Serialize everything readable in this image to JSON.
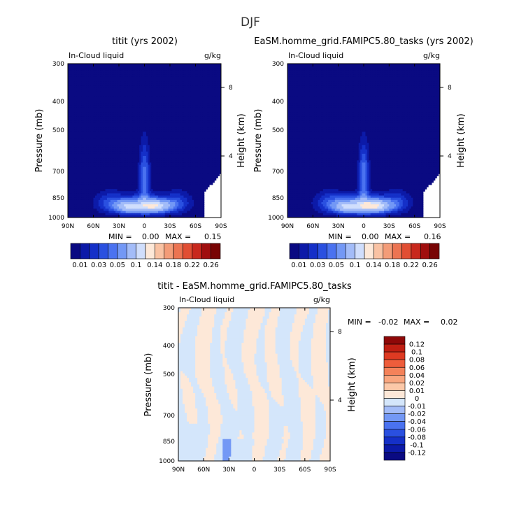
{
  "title": "DJF",
  "colors": {
    "seq": [
      "#0a0a82",
      "#0c1aa8",
      "#1530c8",
      "#2a50e0",
      "#4a72f0",
      "#7398f5",
      "#a3bcf8",
      "#d0defc",
      "#fde8d8",
      "#f9c2a3",
      "#f39c78",
      "#ec7452",
      "#e14e33",
      "#c8281d",
      "#a00e0e",
      "#780404"
    ],
    "div": [
      "#0a0a82",
      "#0c1aa8",
      "#1530c8",
      "#2a50e0",
      "#4a72f0",
      "#7398f5",
      "#a3bcf8",
      "#d4e6fb",
      "#fde8d8",
      "#fcc8a8",
      "#f9a67f",
      "#f4825a",
      "#ee5d3b",
      "#de3a22",
      "#bf1e12",
      "#8e0808"
    ]
  },
  "chart_data": [
    {
      "type": "heatmap",
      "title": "titit (yrs 2002)",
      "left_label": "In-Cloud liquid",
      "right_label": "g/kg",
      "ylabel": "Pressure (mb)",
      "ylabel_right": "Height (km)",
      "x_ticks": [
        "90N",
        "60N",
        "30N",
        "0",
        "30S",
        "60S",
        "90S"
      ],
      "y_ticks": [
        "300",
        "400",
        "500",
        "700",
        "850",
        "1000"
      ],
      "y_right_ticks": [
        "8",
        "4"
      ],
      "stats": {
        "min_label": "MIN =",
        "min": "0.00",
        "max_label": "MAX =",
        "max": "0.15"
      },
      "colorbar_labels": [
        "0.01",
        "0.03",
        "0.05",
        "0.1",
        "0.14",
        "0.18",
        "0.22",
        "0.26"
      ],
      "peak_value": 0.15,
      "missing_above_lat": -60
    },
    {
      "type": "heatmap",
      "title": "EaSM.homme_grid.FAMIPC5.80_tasks (yrs 2002)",
      "left_label": "In-Cloud liquid",
      "right_label": "g/kg",
      "ylabel": "Pressure (mb)",
      "ylabel_right": "Height (km)",
      "x_ticks": [
        "90N",
        "60N",
        "30N",
        "0",
        "30S",
        "60S",
        "90S"
      ],
      "y_ticks": [
        "300",
        "400",
        "500",
        "700",
        "850",
        "1000"
      ],
      "y_right_ticks": [
        "8",
        "4"
      ],
      "stats": {
        "min_label": "MIN =",
        "min": "0.00",
        "max_label": "MAX =",
        "max": "0.16"
      },
      "colorbar_labels": [
        "0.01",
        "0.03",
        "0.05",
        "0.1",
        "0.14",
        "0.18",
        "0.22",
        "0.26"
      ],
      "peak_value": 0.16,
      "missing_above_lat": -60
    },
    {
      "type": "heatmap",
      "title": "titit - EaSM.homme_grid.FAMIPC5.80_tasks",
      "left_label": "In-Cloud liquid",
      "right_label": "g/kg",
      "ylabel": "Pressure (mb)",
      "ylabel_right": "Height (km)",
      "x_ticks": [
        "90N",
        "60N",
        "30N",
        "0",
        "30S",
        "60S",
        "90S"
      ],
      "y_ticks": [
        "300",
        "400",
        "500",
        "700",
        "850",
        "1000"
      ],
      "y_right_ticks": [
        "8",
        "4"
      ],
      "stats": {
        "min_label": "MIN =",
        "min": "-0.02",
        "max_label": "MAX =",
        "max": "0.02"
      },
      "colorbar_labels": [
        "0.12",
        "0.1",
        "0.08",
        "0.06",
        "0.04",
        "0.02",
        "0.01",
        "0",
        "-0.01",
        "-0.02",
        "-0.04",
        "-0.06",
        "-0.08",
        "-0.1",
        "-0.12"
      ]
    }
  ]
}
